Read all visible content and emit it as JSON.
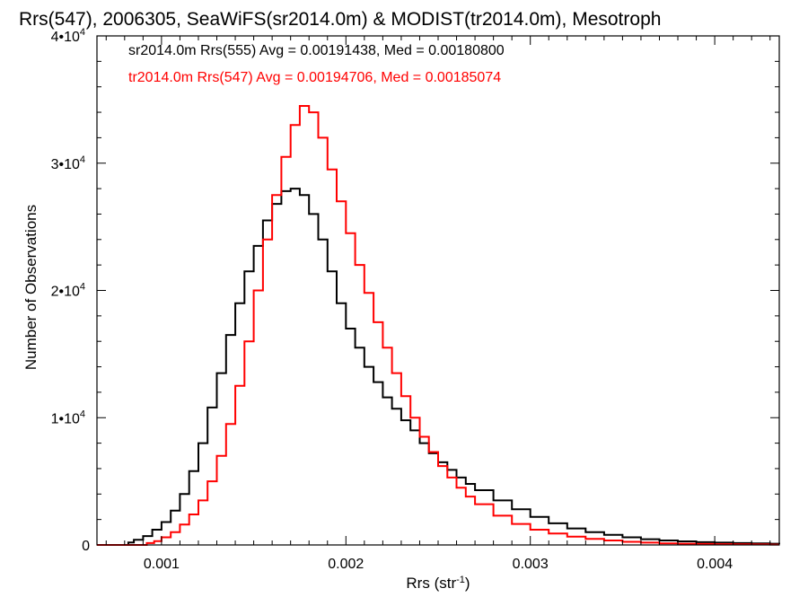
{
  "chart_data": {
    "type": "histogram-step",
    "title": "Rrs(547), 2006305, SeaWiFS(sr2014.0m) & MODIST(tr2014.0m), Mesotroph",
    "xlabel": "Rrs (str",
    "xlabel_sup": "-1",
    "xlabel_close": ")",
    "ylabel": "Number of Observations",
    "xlim": [
      0.00065,
      0.00435
    ],
    "ylim": [
      0,
      40000
    ],
    "x_ticks": [
      {
        "value": 0.001,
        "label": "0.001"
      },
      {
        "value": 0.002,
        "label": "0.002"
      },
      {
        "value": 0.003,
        "label": "0.003"
      },
      {
        "value": 0.004,
        "label": "0.004"
      }
    ],
    "y_ticks": [
      {
        "value": 0,
        "label": "0",
        "exp": ""
      },
      {
        "value": 10000,
        "label": "1•10",
        "exp": "4"
      },
      {
        "value": 20000,
        "label": "2•10",
        "exp": "4"
      },
      {
        "value": 30000,
        "label": "3•10",
        "exp": "4"
      },
      {
        "value": 40000,
        "label": "4•10",
        "exp": "4"
      }
    ],
    "legend_placement": "top-left",
    "series": [
      {
        "legend": "sr2014.0m Rrs(555) Avg = 0.00191438, Med = 0.00180800",
        "color": "#000000",
        "points": [
          [
            0.00065,
            0
          ],
          [
            0.00078,
            0
          ],
          [
            0.00082,
            200
          ],
          [
            0.00085,
            400
          ],
          [
            0.0009,
            700
          ],
          [
            0.00095,
            1200
          ],
          [
            0.001,
            1800
          ],
          [
            0.00105,
            2700
          ],
          [
            0.0011,
            4000
          ],
          [
            0.00115,
            5800
          ],
          [
            0.0012,
            8000
          ],
          [
            0.00125,
            10800
          ],
          [
            0.0013,
            13500
          ],
          [
            0.00135,
            16500
          ],
          [
            0.0014,
            19000
          ],
          [
            0.00145,
            21500
          ],
          [
            0.0015,
            23500
          ],
          [
            0.00155,
            25500
          ],
          [
            0.0016,
            26800
          ],
          [
            0.00165,
            27800
          ],
          [
            0.0017,
            28000
          ],
          [
            0.00175,
            27500
          ],
          [
            0.0018,
            26000
          ],
          [
            0.00185,
            24000
          ],
          [
            0.0019,
            21500
          ],
          [
            0.00195,
            19000
          ],
          [
            0.002,
            17000
          ],
          [
            0.00205,
            15500
          ],
          [
            0.0021,
            14000
          ],
          [
            0.00215,
            12800
          ],
          [
            0.0022,
            11600
          ],
          [
            0.00225,
            10700
          ],
          [
            0.0023,
            9800
          ],
          [
            0.00235,
            9000
          ],
          [
            0.0024,
            8000
          ],
          [
            0.00245,
            7200
          ],
          [
            0.0025,
            6500
          ],
          [
            0.00255,
            5900
          ],
          [
            0.0026,
            5300
          ],
          [
            0.00265,
            4800
          ],
          [
            0.0027,
            4300
          ],
          [
            0.0028,
            3500
          ],
          [
            0.0029,
            2800
          ],
          [
            0.003,
            2200
          ],
          [
            0.0031,
            1700
          ],
          [
            0.0032,
            1300
          ],
          [
            0.0033,
            1000
          ],
          [
            0.0034,
            800
          ],
          [
            0.0035,
            600
          ],
          [
            0.0036,
            450
          ],
          [
            0.0037,
            350
          ],
          [
            0.0038,
            280
          ],
          [
            0.0039,
            220
          ],
          [
            0.004,
            180
          ],
          [
            0.0041,
            150
          ],
          [
            0.0042,
            120
          ],
          [
            0.0043,
            100
          ],
          [
            0.00435,
            90
          ]
        ]
      },
      {
        "legend": "tr2014.0m Rrs(547) Avg = 0.00194706, Med = 0.00185074",
        "color": "#ff0000",
        "points": [
          [
            0.00065,
            0
          ],
          [
            0.00088,
            0
          ],
          [
            0.00092,
            150
          ],
          [
            0.00096,
            300
          ],
          [
            0.001,
            600
          ],
          [
            0.00105,
            1000
          ],
          [
            0.0011,
            1600
          ],
          [
            0.00115,
            2400
          ],
          [
            0.0012,
            3500
          ],
          [
            0.00125,
            5000
          ],
          [
            0.0013,
            7000
          ],
          [
            0.00135,
            9500
          ],
          [
            0.0014,
            12500
          ],
          [
            0.00145,
            16000
          ],
          [
            0.0015,
            20000
          ],
          [
            0.00155,
            24000
          ],
          [
            0.0016,
            27500
          ],
          [
            0.00165,
            30500
          ],
          [
            0.0017,
            33000
          ],
          [
            0.00175,
            34500
          ],
          [
            0.0018,
            34000
          ],
          [
            0.00185,
            32000
          ],
          [
            0.0019,
            29500
          ],
          [
            0.00195,
            27000
          ],
          [
            0.002,
            24500
          ],
          [
            0.00205,
            22000
          ],
          [
            0.0021,
            19800
          ],
          [
            0.00215,
            17500
          ],
          [
            0.0022,
            15500
          ],
          [
            0.00225,
            13500
          ],
          [
            0.0023,
            11700
          ],
          [
            0.00235,
            10000
          ],
          [
            0.0024,
            8500
          ],
          [
            0.00245,
            7300
          ],
          [
            0.0025,
            6200
          ],
          [
            0.00255,
            5300
          ],
          [
            0.0026,
            4500
          ],
          [
            0.00265,
            3800
          ],
          [
            0.0027,
            3200
          ],
          [
            0.0028,
            2300
          ],
          [
            0.0029,
            1650
          ],
          [
            0.003,
            1200
          ],
          [
            0.0031,
            900
          ],
          [
            0.0032,
            650
          ],
          [
            0.0033,
            480
          ],
          [
            0.0034,
            350
          ],
          [
            0.0035,
            250
          ],
          [
            0.0036,
            180
          ],
          [
            0.0037,
            130
          ],
          [
            0.0038,
            100
          ],
          [
            0.0039,
            80
          ],
          [
            0.004,
            60
          ],
          [
            0.0041,
            50
          ],
          [
            0.0042,
            40
          ],
          [
            0.0043,
            30
          ],
          [
            0.00435,
            25
          ]
        ]
      }
    ]
  }
}
